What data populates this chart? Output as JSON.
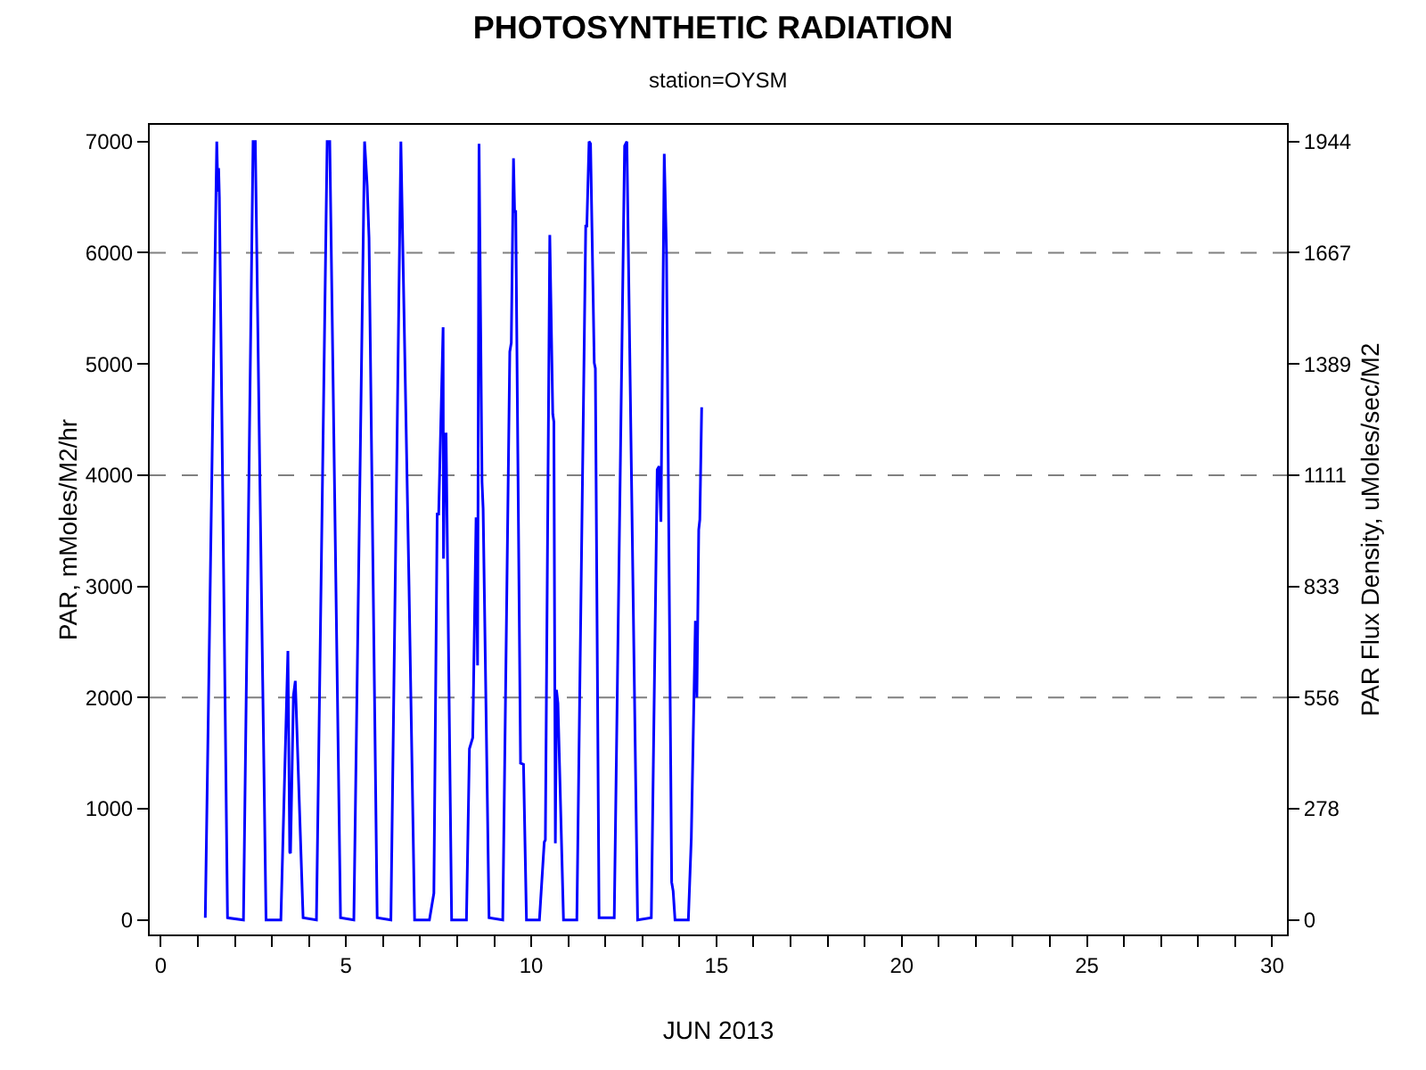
{
  "chart_data": {
    "type": "line",
    "title": "PHOTOSYNTHETIC RADIATION",
    "subtitle": "station=OYSM",
    "xlabel": "JUN 2013",
    "ylabel": "PAR, mMoles/M2/hr",
    "y2label": "PAR Flux Density, uMoles/sec/M2",
    "series": [
      {
        "color": "#0000ff",
        "x": [
          1.2,
          1.51,
          1.54,
          1.56,
          1.58,
          1.8,
          2.23,
          2.49,
          2.55,
          2.68,
          2.84,
          3.24,
          3.43,
          3.48,
          3.5,
          3.58,
          3.63,
          3.84,
          4.2,
          4.49,
          4.56,
          4.85,
          5.21,
          5.5,
          5.57,
          5.62,
          5.84,
          6.21,
          6.48,
          6.7,
          6.85,
          7.25,
          7.37,
          7.46,
          7.5,
          7.62,
          7.63,
          7.67,
          7.7,
          7.85,
          8.25,
          8.33,
          8.42,
          8.51,
          8.55,
          8.59,
          8.67,
          8.7,
          8.86,
          9.23,
          9.42,
          9.46,
          9.52,
          9.55,
          9.58,
          9.71,
          9.79,
          9.87,
          10.22,
          10.35,
          10.38,
          10.5,
          10.58,
          10.61,
          10.65,
          10.68,
          10.72,
          10.87,
          11.23,
          11.47,
          11.5,
          11.56,
          11.6,
          11.7,
          11.73,
          11.83,
          12.24,
          12.52,
          12.58,
          12.87,
          13.24,
          13.4,
          13.45,
          13.5,
          13.59,
          13.65,
          13.79,
          13.83,
          13.88,
          14.24,
          14.32,
          14.43,
          14.47,
          14.52,
          14.55,
          14.6
        ],
        "values": [
          20,
          7000,
          6550,
          6760,
          6500,
          20,
          0,
          7000,
          7000,
          3800,
          0,
          0,
          2420,
          610,
          600,
          2020,
          2150,
          20,
          0,
          7000,
          7000,
          20,
          0,
          7000,
          6600,
          6130,
          20,
          0,
          7000,
          3000,
          0,
          0,
          240,
          3650,
          3650,
          5330,
          3250,
          4370,
          4370,
          0,
          0,
          1540,
          1640,
          3620,
          2290,
          6980,
          3940,
          3700,
          20,
          0,
          5110,
          5190,
          6850,
          6370,
          6370,
          1410,
          1400,
          0,
          0,
          700,
          720,
          6160,
          4550,
          4480,
          690,
          2070,
          1950,
          0,
          0,
          6240,
          6240,
          7000,
          6980,
          5010,
          4960,
          20,
          20,
          6960,
          7000,
          0,
          20,
          4050,
          4080,
          3580,
          6890,
          6000,
          340,
          260,
          0,
          0,
          740,
          2690,
          2000,
          3510,
          3600,
          4610
        ]
      }
    ],
    "xlim": [
      -0.3,
      30.4
    ],
    "ylim": [
      -130,
      7150
    ],
    "y2lim": [
      -36.1,
      1986.1
    ],
    "xticks": [
      0,
      {
        "value": 1,
        "label": null
      },
      {
        "value": 2,
        "label": null
      },
      {
        "value": 3,
        "label": null
      },
      {
        "value": 4,
        "label": null
      },
      5,
      {
        "value": 6,
        "label": null
      },
      {
        "value": 7,
        "label": null
      },
      {
        "value": 8,
        "label": null
      },
      {
        "value": 9,
        "label": null
      },
      10,
      {
        "value": 11,
        "label": null
      },
      {
        "value": 12,
        "label": null
      },
      {
        "value": 13,
        "label": null
      },
      {
        "value": 14,
        "label": null
      },
      15,
      {
        "value": 16,
        "label": null
      },
      {
        "value": 17,
        "label": null
      },
      {
        "value": 18,
        "label": null
      },
      {
        "value": 19,
        "label": null
      },
      20,
      {
        "value": 21,
        "label": null
      },
      {
        "value": 22,
        "label": null
      },
      {
        "value": 23,
        "label": null
      },
      {
        "value": 24,
        "label": null
      },
      25,
      {
        "value": 26,
        "label": null
      },
      {
        "value": 27,
        "label": null
      },
      {
        "value": 28,
        "label": null
      },
      {
        "value": 29,
        "label": null
      },
      30
    ],
    "yticks": [
      0,
      1000,
      2000,
      3000,
      4000,
      5000,
      6000,
      7000
    ],
    "y2ticks": [
      0,
      {
        "value": 277.8,
        "label": "278"
      },
      {
        "value": 555.6,
        "label": "556"
      },
      {
        "value": 833.3,
        "label": "833"
      },
      {
        "value": 1111.1,
        "label": "1111"
      },
      {
        "value": 1388.9,
        "label": "1389"
      },
      {
        "value": 1666.7,
        "label": "1667"
      },
      {
        "value": 1944.4,
        "label": "1944"
      }
    ],
    "ref_lines": [
      {
        "axis": "y",
        "value": 2000,
        "color": "#808080",
        "line_style": "dashed"
      },
      {
        "axis": "y",
        "value": 4000,
        "color": "#808080",
        "line_style": "dashed"
      },
      {
        "axis": "y",
        "value": 6000,
        "color": "#808080",
        "line_style": "dashed"
      }
    ],
    "grid": false,
    "marker": "none",
    "line_style": "solid"
  }
}
